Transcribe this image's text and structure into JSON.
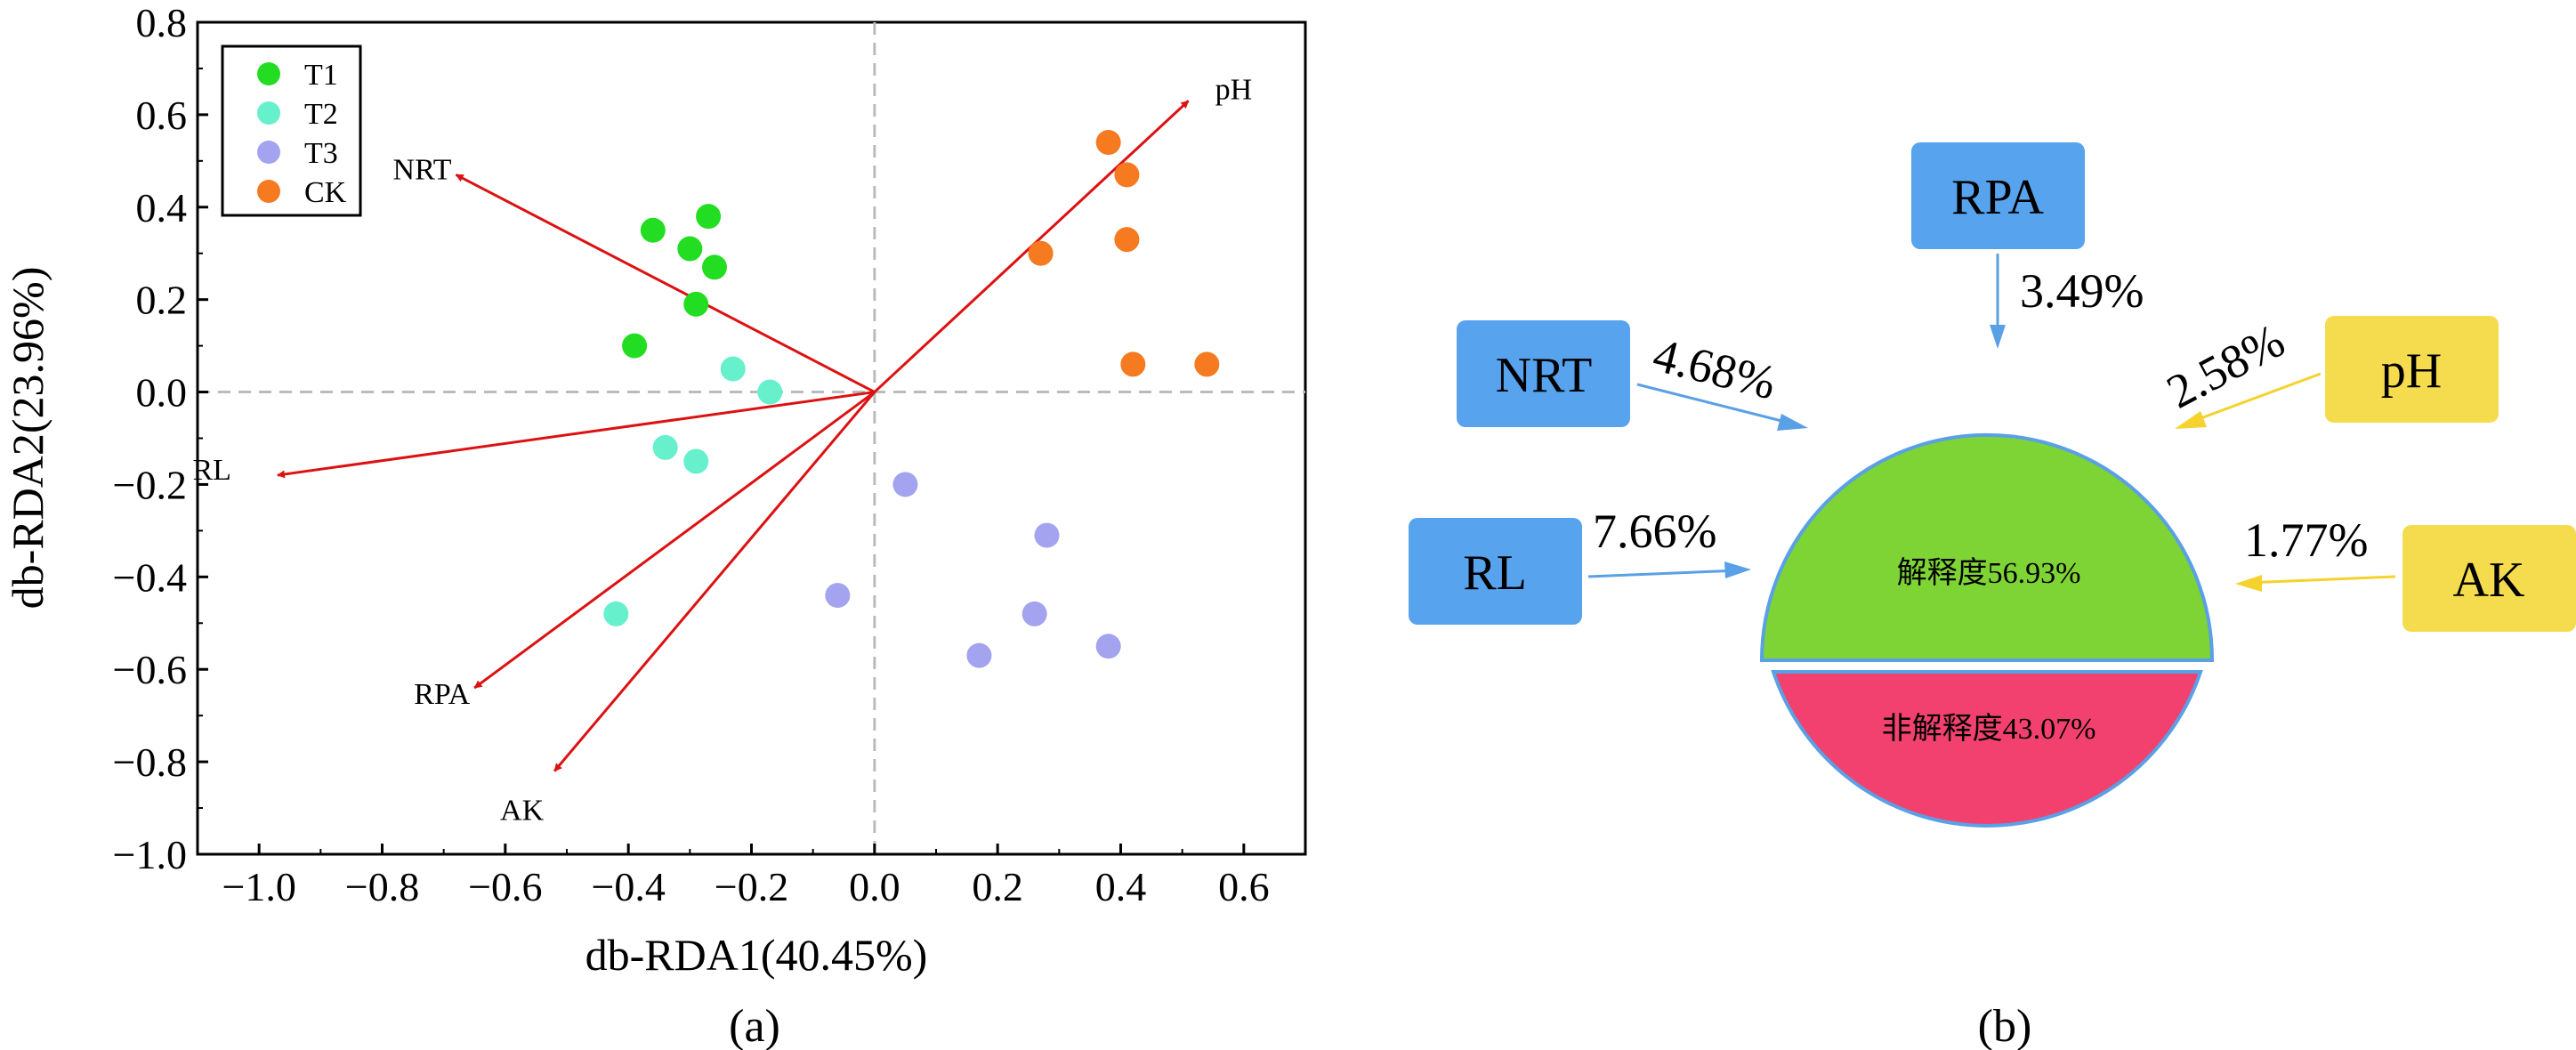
{
  "chart_data": [
    {
      "type": "scatter",
      "panel_label": "(a)",
      "xlabel": "db-RDA1(40.45%)",
      "ylabel": "db-RDA2(23.96%)",
      "xlim": [
        -1.1,
        0.7
      ],
      "ylim": [
        -1.0,
        0.8
      ],
      "x_ticks": [
        -1.0,
        -0.8,
        -0.6,
        -0.4,
        -0.2,
        0.0,
        0.2,
        0.4,
        0.6
      ],
      "x_tick_labels": [
        "−1.0",
        "−0.8",
        "−0.6",
        "−0.4",
        "−0.2",
        "0.0",
        "0.2",
        "0.4",
        "0.6"
      ],
      "y_ticks": [
        0.8,
        0.6,
        0.4,
        0.2,
        0.0,
        -0.2,
        -0.4,
        -0.6,
        -0.8,
        -1.0
      ],
      "y_tick_labels": [
        "0.8",
        "0.6",
        "0.4",
        "0.2",
        "0.0",
        "−0.2",
        "−0.4",
        "−0.6",
        "−0.8",
        "−1.0"
      ],
      "legend_position": "top-left",
      "series": [
        {
          "name": "T1",
          "color": "#22dd22",
          "points": [
            [
              -0.36,
              0.35
            ],
            [
              -0.3,
              0.31
            ],
            [
              -0.27,
              0.38
            ],
            [
              -0.26,
              0.27
            ],
            [
              -0.29,
              0.19
            ],
            [
              -0.39,
              0.1
            ]
          ]
        },
        {
          "name": "T2",
          "color": "#66f0cc",
          "points": [
            [
              -0.23,
              0.05
            ],
            [
              -0.17,
              0.0
            ],
            [
              -0.34,
              -0.12
            ],
            [
              -0.29,
              -0.15
            ],
            [
              -0.42,
              -0.48
            ]
          ]
        },
        {
          "name": "T3",
          "color": "#a3a3ef",
          "points": [
            [
              0.05,
              -0.2
            ],
            [
              0.28,
              -0.31
            ],
            [
              -0.06,
              -0.44
            ],
            [
              0.26,
              -0.48
            ],
            [
              0.17,
              -0.57
            ],
            [
              0.38,
              -0.55
            ]
          ]
        },
        {
          "name": "CK",
          "color": "#f57a20",
          "points": [
            [
              0.38,
              0.54
            ],
            [
              0.41,
              0.47
            ],
            [
              0.27,
              0.3
            ],
            [
              0.41,
              0.33
            ],
            [
              0.42,
              0.06
            ],
            [
              0.54,
              0.06
            ]
          ]
        }
      ],
      "vectors": [
        {
          "name": "pH",
          "x": 0.51,
          "y": 0.63
        },
        {
          "name": "NRT",
          "x": -0.68,
          "y": 0.47
        },
        {
          "name": "RL",
          "x": -0.97,
          "y": -0.18
        },
        {
          "name": "RPA",
          "x": -0.65,
          "y": -0.64
        },
        {
          "name": "AK",
          "x": -0.52,
          "y": -0.82
        }
      ],
      "vector_color": "#dd1111"
    },
    {
      "type": "pie",
      "panel_label": "(b)",
      "slices": [
        {
          "label": "解释度56.93%",
          "value": 56.93,
          "color": "#7ed335"
        },
        {
          "label": "非解释度43.07%",
          "value": 43.07,
          "color": "#f2416e"
        }
      ],
      "factors": [
        {
          "name": "RPA",
          "percent": "3.49%",
          "color": "#57a3ee"
        },
        {
          "name": "NRT",
          "percent": "4.68%",
          "color": "#57a3ee"
        },
        {
          "name": "RL",
          "percent": "7.66%",
          "color": "#57a3ee"
        },
        {
          "name": "pH",
          "percent": "2.58%",
          "color": "#f5dc4e"
        },
        {
          "name": "AK",
          "percent": "1.77%",
          "color": "#f5dc4e"
        }
      ]
    }
  ]
}
